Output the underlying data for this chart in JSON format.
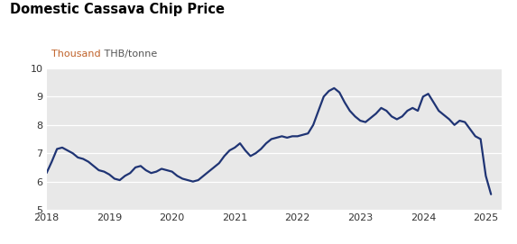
{
  "title": "Domestic Cassava Chip Price",
  "ylabel_orange": "Thousand",
  "ylabel_dark": " THB/tonne",
  "ylim": [
    5,
    10
  ],
  "yticks": [
    5,
    6,
    7,
    8,
    9,
    10
  ],
  "xlim": [
    2018.0,
    2025.25
  ],
  "xticks": [
    2018,
    2019,
    2020,
    2021,
    2022,
    2023,
    2024,
    2025
  ],
  "line_color": "#1f3474",
  "line_width": 1.6,
  "bg_color": "#e8e8e8",
  "title_color": "#000000",
  "ylabel_orange_color": "#c0622a",
  "ylabel_dark_color": "#555555",
  "times": [
    2018.0,
    2018.083,
    2018.167,
    2018.25,
    2018.333,
    2018.417,
    2018.5,
    2018.583,
    2018.667,
    2018.75,
    2018.833,
    2018.917,
    2019.0,
    2019.083,
    2019.167,
    2019.25,
    2019.333,
    2019.417,
    2019.5,
    2019.583,
    2019.667,
    2019.75,
    2019.833,
    2019.917,
    2020.0,
    2020.083,
    2020.167,
    2020.25,
    2020.333,
    2020.417,
    2020.5,
    2020.583,
    2020.667,
    2020.75,
    2020.833,
    2020.917,
    2021.0,
    2021.083,
    2021.167,
    2021.25,
    2021.333,
    2021.417,
    2021.5,
    2021.583,
    2021.667,
    2021.75,
    2021.833,
    2021.917,
    2022.0,
    2022.083,
    2022.167,
    2022.25,
    2022.333,
    2022.417,
    2022.5,
    2022.583,
    2022.667,
    2022.75,
    2022.833,
    2022.917,
    2023.0,
    2023.083,
    2023.167,
    2023.25,
    2023.333,
    2023.417,
    2023.5,
    2023.583,
    2023.667,
    2023.75,
    2023.833,
    2023.917,
    2024.0,
    2024.083,
    2024.167,
    2024.25,
    2024.333,
    2024.417,
    2024.5,
    2024.583,
    2024.667,
    2024.75,
    2024.833,
    2024.917,
    2025.0,
    2025.083
  ],
  "values": [
    6.3,
    6.7,
    7.15,
    7.2,
    7.1,
    7.0,
    6.85,
    6.8,
    6.7,
    6.55,
    6.4,
    6.35,
    6.25,
    6.1,
    6.05,
    6.2,
    6.3,
    6.5,
    6.55,
    6.4,
    6.3,
    6.35,
    6.45,
    6.4,
    6.35,
    6.2,
    6.1,
    6.05,
    6.0,
    6.05,
    6.2,
    6.35,
    6.5,
    6.65,
    6.9,
    7.1,
    7.2,
    7.35,
    7.1,
    6.9,
    7.0,
    7.15,
    7.35,
    7.5,
    7.55,
    7.6,
    7.55,
    7.6,
    7.6,
    7.65,
    7.7,
    8.0,
    8.5,
    9.0,
    9.2,
    9.3,
    9.15,
    8.8,
    8.5,
    8.3,
    8.15,
    8.1,
    8.25,
    8.4,
    8.6,
    8.5,
    8.3,
    8.2,
    8.3,
    8.5,
    8.6,
    8.5,
    9.0,
    9.1,
    8.8,
    8.5,
    8.35,
    8.2,
    8.0,
    8.15,
    8.1,
    7.85,
    7.6,
    7.5,
    6.2,
    5.55
  ]
}
